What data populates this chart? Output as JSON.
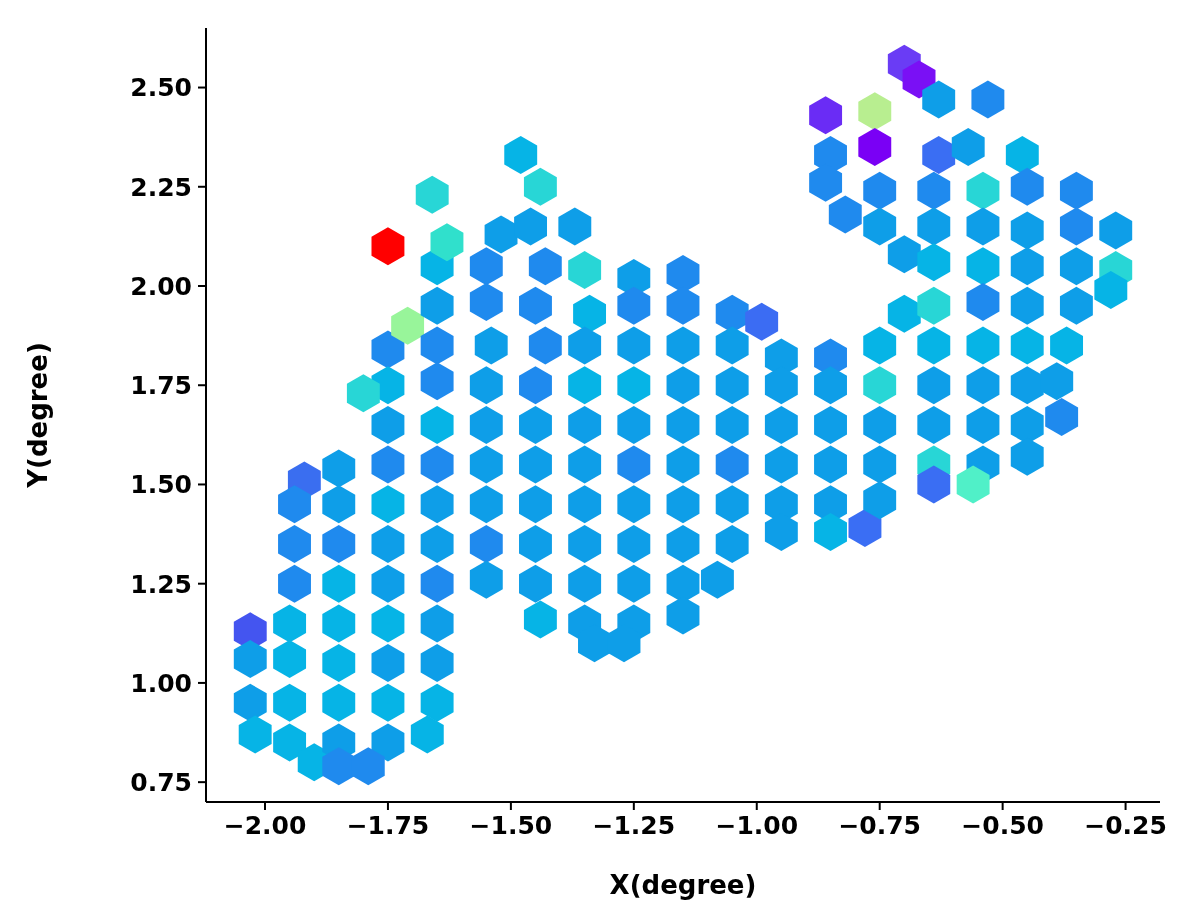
{
  "chart_data": {
    "type": "scatter",
    "xlabel": "X(degree)",
    "ylabel": "Y(degree)",
    "xlim": [
      -2.12,
      -0.18
    ],
    "xticks": [
      {
        "value": -2,
        "label": "−2.00"
      },
      {
        "value": -1.75,
        "label": "−1.75"
      },
      {
        "value": -1.5,
        "label": "−1.50"
      },
      {
        "value": -1.25,
        "label": "−1.25"
      },
      {
        "value": -1,
        "label": "−1.00"
      },
      {
        "value": -0.75,
        "label": "−0.75"
      },
      {
        "value": -0.5,
        "label": "−0.50"
      },
      {
        "value": -0.25,
        "label": "−0.25"
      }
    ],
    "ylim": [
      0.7,
      2.65
    ],
    "yticks": [
      {
        "value": 0.75,
        "label": "0.75"
      },
      {
        "value": 1,
        "label": "1.00"
      },
      {
        "value": 1.25,
        "label": "1.25"
      },
      {
        "value": 1.5,
        "label": "1.50"
      },
      {
        "value": 1.75,
        "label": "1.75"
      },
      {
        "value": 2,
        "label": "2.00"
      },
      {
        "value": 2.25,
        "label": "2.25"
      },
      {
        "value": 2.5,
        "label": "2.50"
      }
    ],
    "x": [
      -2.03,
      -2.03,
      -2.03,
      -2.02,
      -1.92,
      -1.94,
      -1.94,
      -1.94,
      -1.95,
      -1.95,
      -1.95,
      -1.95,
      -1.9,
      -1.85,
      -1.85,
      -1.85,
      -1.85,
      -1.85,
      -1.85,
      -1.85,
      -1.85,
      -1.85,
      -1.75,
      -1.75,
      -1.75,
      -1.75,
      -1.75,
      -1.75,
      -1.75,
      -1.75,
      -1.75,
      -1.75,
      -1.75,
      -1.75,
      -1.79,
      -1.8,
      -1.71,
      -1.66,
      -1.65,
      -1.65,
      -1.65,
      -1.65,
      -1.65,
      -1.65,
      -1.65,
      -1.65,
      -1.65,
      -1.65,
      -1.65,
      -1.65,
      -1.67,
      -1.63,
      -1.55,
      -1.55,
      -1.54,
      -1.55,
      -1.55,
      -1.55,
      -1.55,
      -1.55,
      -1.55,
      -1.52,
      -1.48,
      -1.44,
      -1.46,
      -1.43,
      -1.45,
      -1.43,
      -1.45,
      -1.45,
      -1.45,
      -1.45,
      -1.45,
      -1.45,
      -1.44,
      -1.37,
      -1.35,
      -1.34,
      -1.35,
      -1.35,
      -1.35,
      -1.35,
      -1.35,
      -1.35,
      -1.35,
      -1.35,
      -1.33,
      -1.25,
      -1.25,
      -1.25,
      -1.25,
      -1.25,
      -1.25,
      -1.25,
      -1.25,
      -1.25,
      -1.25,
      -1.27,
      -1.15,
      -1.15,
      -1.15,
      -1.15,
      -1.15,
      -1.15,
      -1.15,
      -1.15,
      -1.15,
      -1.15,
      -1.08,
      -1.05,
      -1.05,
      -1.05,
      -1.05,
      -1.05,
      -1.05,
      -1.05,
      -0.99,
      -0.95,
      -0.95,
      -0.95,
      -0.95,
      -0.95,
      -0.95,
      -0.85,
      -0.85,
      -0.85,
      -0.85,
      -0.85,
      -0.85,
      -0.78,
      -0.86,
      -0.85,
      -0.86,
      -0.82,
      -0.76,
      -0.76,
      -0.75,
      -0.75,
      -0.75,
      -0.75,
      -0.75,
      -0.75,
      -0.75,
      -0.7,
      -0.67,
      -0.7,
      -0.7,
      -0.63,
      -0.63,
      -0.64,
      -0.64,
      -0.64,
      -0.64,
      -0.64,
      -0.64,
      -0.64,
      -0.64,
      -0.64,
      -0.57,
      -0.53,
      -0.54,
      -0.54,
      -0.54,
      -0.54,
      -0.54,
      -0.54,
      -0.54,
      -0.54,
      -0.56,
      -0.46,
      -0.45,
      -0.45,
      -0.45,
      -0.45,
      -0.45,
      -0.45,
      -0.45,
      -0.45,
      -0.35,
      -0.35,
      -0.35,
      -0.35,
      -0.37,
      -0.39,
      -0.38,
      -0.27,
      -0.27,
      -0.28
    ],
    "values": [
      1.13,
      1.06,
      0.95,
      0.87,
      1.51,
      1.45,
      1.35,
      1.25,
      1.15,
      1.06,
      0.95,
      0.85,
      0.8,
      1.54,
      1.45,
      1.35,
      1.25,
      1.15,
      1.05,
      0.95,
      0.85,
      0.79,
      2.1,
      1.84,
      1.75,
      1.65,
      1.55,
      1.45,
      1.35,
      1.25,
      1.15,
      1.05,
      0.95,
      0.85,
      0.79,
      1.73,
      1.9,
      2.23,
      2.05,
      1.95,
      1.85,
      1.76,
      1.65,
      1.55,
      1.45,
      1.35,
      1.25,
      1.15,
      1.05,
      0.95,
      0.87,
      2.11,
      2.05,
      1.96,
      1.85,
      1.75,
      1.65,
      1.55,
      1.45,
      1.35,
      1.26,
      2.13,
      2.33,
      2.25,
      2.15,
      2.05,
      1.95,
      1.85,
      1.75,
      1.65,
      1.55,
      1.45,
      1.35,
      1.25,
      1.16,
      2.15,
      2.04,
      1.93,
      1.85,
      1.75,
      1.65,
      1.55,
      1.45,
      1.35,
      1.25,
      1.15,
      1.1,
      2.02,
      1.95,
      1.85,
      1.75,
      1.65,
      1.55,
      1.45,
      1.35,
      1.25,
      1.15,
      1.1,
      2.03,
      1.95,
      1.85,
      1.75,
      1.65,
      1.55,
      1.45,
      1.35,
      1.25,
      1.17,
      1.26,
      1.93,
      1.85,
      1.75,
      1.65,
      1.55,
      1.45,
      1.35,
      1.91,
      1.82,
      1.75,
      1.65,
      1.55,
      1.45,
      1.38,
      1.82,
      1.75,
      1.65,
      1.55,
      1.45,
      1.38,
      1.39,
      2.43,
      2.33,
      2.26,
      2.18,
      2.44,
      2.35,
      2.24,
      2.15,
      1.85,
      1.75,
      1.65,
      1.55,
      1.46,
      2.56,
      2.52,
      2.08,
      1.93,
      2.47,
      2.33,
      2.24,
      2.15,
      2.06,
      1.95,
      1.85,
      1.75,
      1.65,
      1.55,
      1.5,
      2.35,
      2.47,
      2.24,
      2.15,
      2.05,
      1.96,
      1.85,
      1.75,
      1.65,
      1.55,
      1.5,
      2.33,
      2.25,
      2.14,
      2.05,
      1.95,
      1.85,
      1.75,
      1.65,
      1.57,
      2.24,
      2.15,
      2.05,
      1.95,
      1.85,
      1.76,
      1.67,
      2.14,
      2.04,
      1.99
    ],
    "colors": [
      "#4455f0",
      "#0e9ee8",
      "#0e9ee8",
      "#06b4e6",
      "#3a6ef0",
      "#1f8aee",
      "#1f8aee",
      "#1f8aee",
      "#06b4e6",
      "#06b4e6",
      "#06b4e6",
      "#06b4e6",
      "#06b4e6",
      "#0e9ee8",
      "#0e9ee8",
      "#1f8aee",
      "#06b4e6",
      "#06b4e6",
      "#06b4e6",
      "#06b4e6",
      "#0e9ee8",
      "#1f8aee",
      "#ff0000",
      "#1f8aee",
      "#06b4e6",
      "#0e9ee8",
      "#1f8aee",
      "#06b4e6",
      "#0e9ee8",
      "#0e9ee8",
      "#06b4e6",
      "#0e9ee8",
      "#06b4e6",
      "#0e9ee8",
      "#1f8aee",
      "#28d6d6",
      "#98f59a",
      "#28d6d6",
      "#06b4e6",
      "#0e9ee8",
      "#1f8aee",
      "#1f8aee",
      "#06b4e6",
      "#1f8aee",
      "#0e9ee8",
      "#0e9ee8",
      "#1f8aee",
      "#0e9ee8",
      "#0e9ee8",
      "#06b4e6",
      "#06b4e6",
      "#30e0cc",
      "#1f8aee",
      "#1f8aee",
      "#0e9ee8",
      "#0e9ee8",
      "#0e9ee8",
      "#0e9ee8",
      "#0e9ee8",
      "#1f8aee",
      "#0e9ee8",
      "#0e9ee8",
      "#06b4e6",
      "#28d6d6",
      "#0e9ee8",
      "#1f8aee",
      "#1f8aee",
      "#1f8aee",
      "#1f8aee",
      "#0e9ee8",
      "#0e9ee8",
      "#0e9ee8",
      "#0e9ee8",
      "#0e9ee8",
      "#06b4e6",
      "#0e9ee8",
      "#28d6d6",
      "#06b4e6",
      "#0e9ee8",
      "#06b4e6",
      "#0e9ee8",
      "#0e9ee8",
      "#0e9ee8",
      "#0e9ee8",
      "#0e9ee8",
      "#0e9ee8",
      "#0e9ee8",
      "#0e9ee8",
      "#1f8aee",
      "#0e9ee8",
      "#06b4e6",
      "#0e9ee8",
      "#1f8aee",
      "#0e9ee8",
      "#0e9ee8",
      "#0e9ee8",
      "#0e9ee8",
      "#0e9ee8",
      "#1f8aee",
      "#1f8aee",
      "#0e9ee8",
      "#0e9ee8",
      "#0e9ee8",
      "#0e9ee8",
      "#0e9ee8",
      "#0e9ee8",
      "#0e9ee8",
      "#0e9ee8",
      "#0e9ee8",
      "#1f8aee",
      "#0e9ee8",
      "#0e9ee8",
      "#0e9ee8",
      "#1f8aee",
      "#0e9ee8",
      "#0e9ee8",
      "#3b6cf3",
      "#0e9ee8",
      "#0e9ee8",
      "#0e9ee8",
      "#0e9ee8",
      "#0e9ee8",
      "#0e9ee8",
      "#1f8aee",
      "#0e9ee8",
      "#0e9ee8",
      "#0e9ee8",
      "#0e9ee8",
      "#06b4e6",
      "#3a6ef4",
      "#6a2cf5",
      "#1f8aee",
      "#1f8aee",
      "#1f8aee",
      "#b8ee90",
      "#7a00f5",
      "#1f8aee",
      "#0e9ee8",
      "#06b4e6",
      "#28d6d6",
      "#0e9ee8",
      "#0e9ee8",
      "#0e9ee8",
      "#6a3cf5",
      "#7a10f5",
      "#0e9ee8",
      "#06b4e6",
      "#0e9ee8",
      "#3a6ef3",
      "#1f8aee",
      "#0e9ee8",
      "#06b4e6",
      "#28d6d6",
      "#06b4e6",
      "#0e9ee8",
      "#0e9ee8",
      "#28d6d6",
      "#3a6ef3",
      "#0e9ee8",
      "#1f8aee",
      "#28d6d6",
      "#0e9ee8",
      "#06b4e6",
      "#1f8aee",
      "#06b4e6",
      "#0e9ee8",
      "#0e9ee8",
      "#0e9ee8",
      "#50f0c8",
      "#06b4e6",
      "#1f8aee",
      "#0e9ee8",
      "#0e9ee8",
      "#0e9ee8",
      "#06b4e6",
      "#0e9ee8",
      "#0e9ee8",
      "#0e9ee8",
      "#1f8aee",
      "#1f8aee",
      "#0e9ee8",
      "#0e9ee8",
      "#06b4e6",
      "#0e9ee8",
      "#1f8aee",
      "#0e9ee8",
      "#28d6d6",
      "#06b4e6"
    ]
  }
}
